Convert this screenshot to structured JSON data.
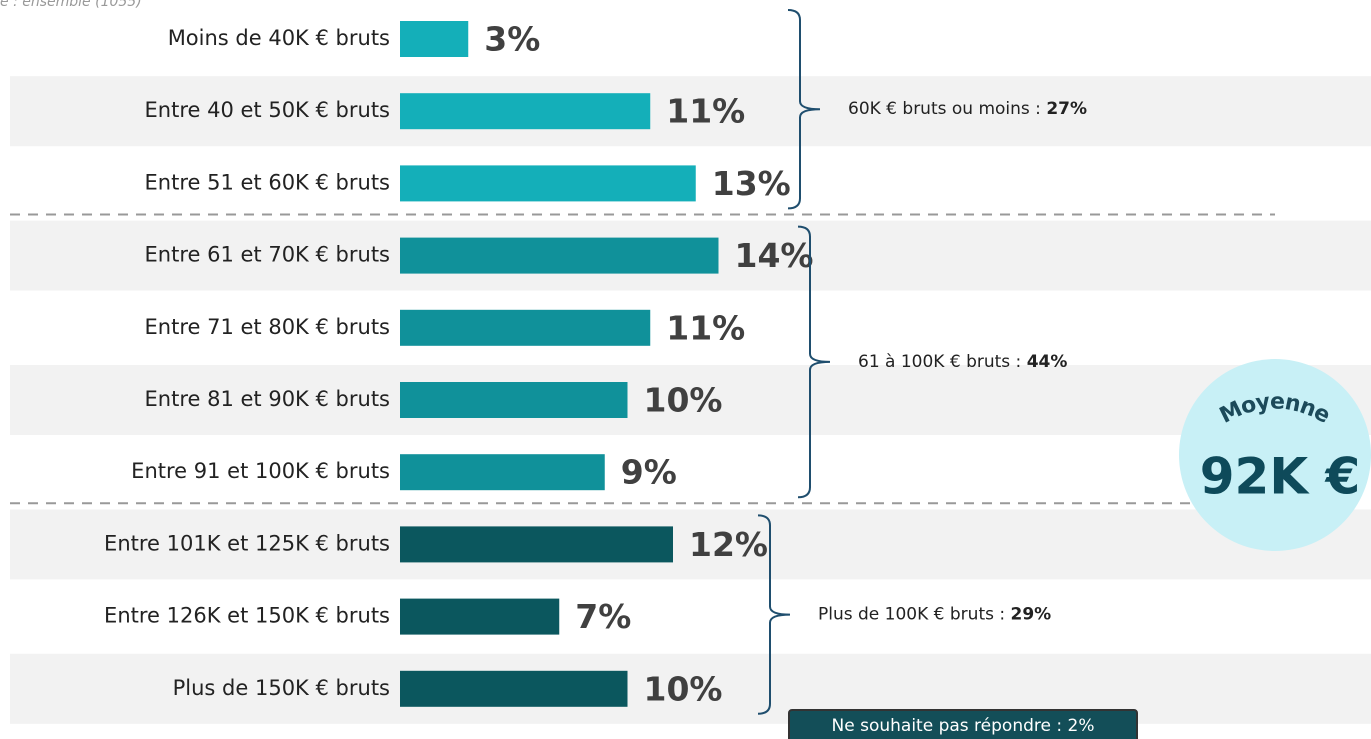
{
  "chart_data": {
    "type": "bar",
    "subtitle": "e : ensemble (1055)",
    "groups": [
      {
        "label": "60K € bruts ou moins : ",
        "share": "27%",
        "color": "#14afb9",
        "categories": [
          "Moins de 40K € bruts",
          "Entre 40 et 50K € bruts",
          "Entre 51 et 60K € bruts"
        ],
        "values": [
          3,
          11,
          13
        ],
        "value_labels": [
          "3%",
          "11%",
          "13%"
        ]
      },
      {
        "label": "61 à 100K € bruts : ",
        "share": "44%",
        "color": "#10919a",
        "categories": [
          "Entre 61 et 70K € bruts",
          "Entre 71 et 80K € bruts",
          "Entre 81 et 90K € bruts",
          "Entre 91 et 100K € bruts"
        ],
        "values": [
          14,
          11,
          10,
          9
        ],
        "value_labels": [
          "14%",
          "11%",
          "10%",
          "9%"
        ]
      },
      {
        "label": "Plus de 100K € bruts : ",
        "share": "29%",
        "color": "#0b575e",
        "categories": [
          "Entre 101K et 125K € bruts",
          "Entre 126K et 150K € bruts",
          "Plus de 150K € bruts"
        ],
        "values": [
          12,
          7,
          10
        ],
        "value_labels": [
          "12%",
          "7%",
          "10%"
        ]
      }
    ],
    "average_label": "Moyenne",
    "average_value": "92K €",
    "note": "Ne souhaite pas répondre : 2%"
  }
}
